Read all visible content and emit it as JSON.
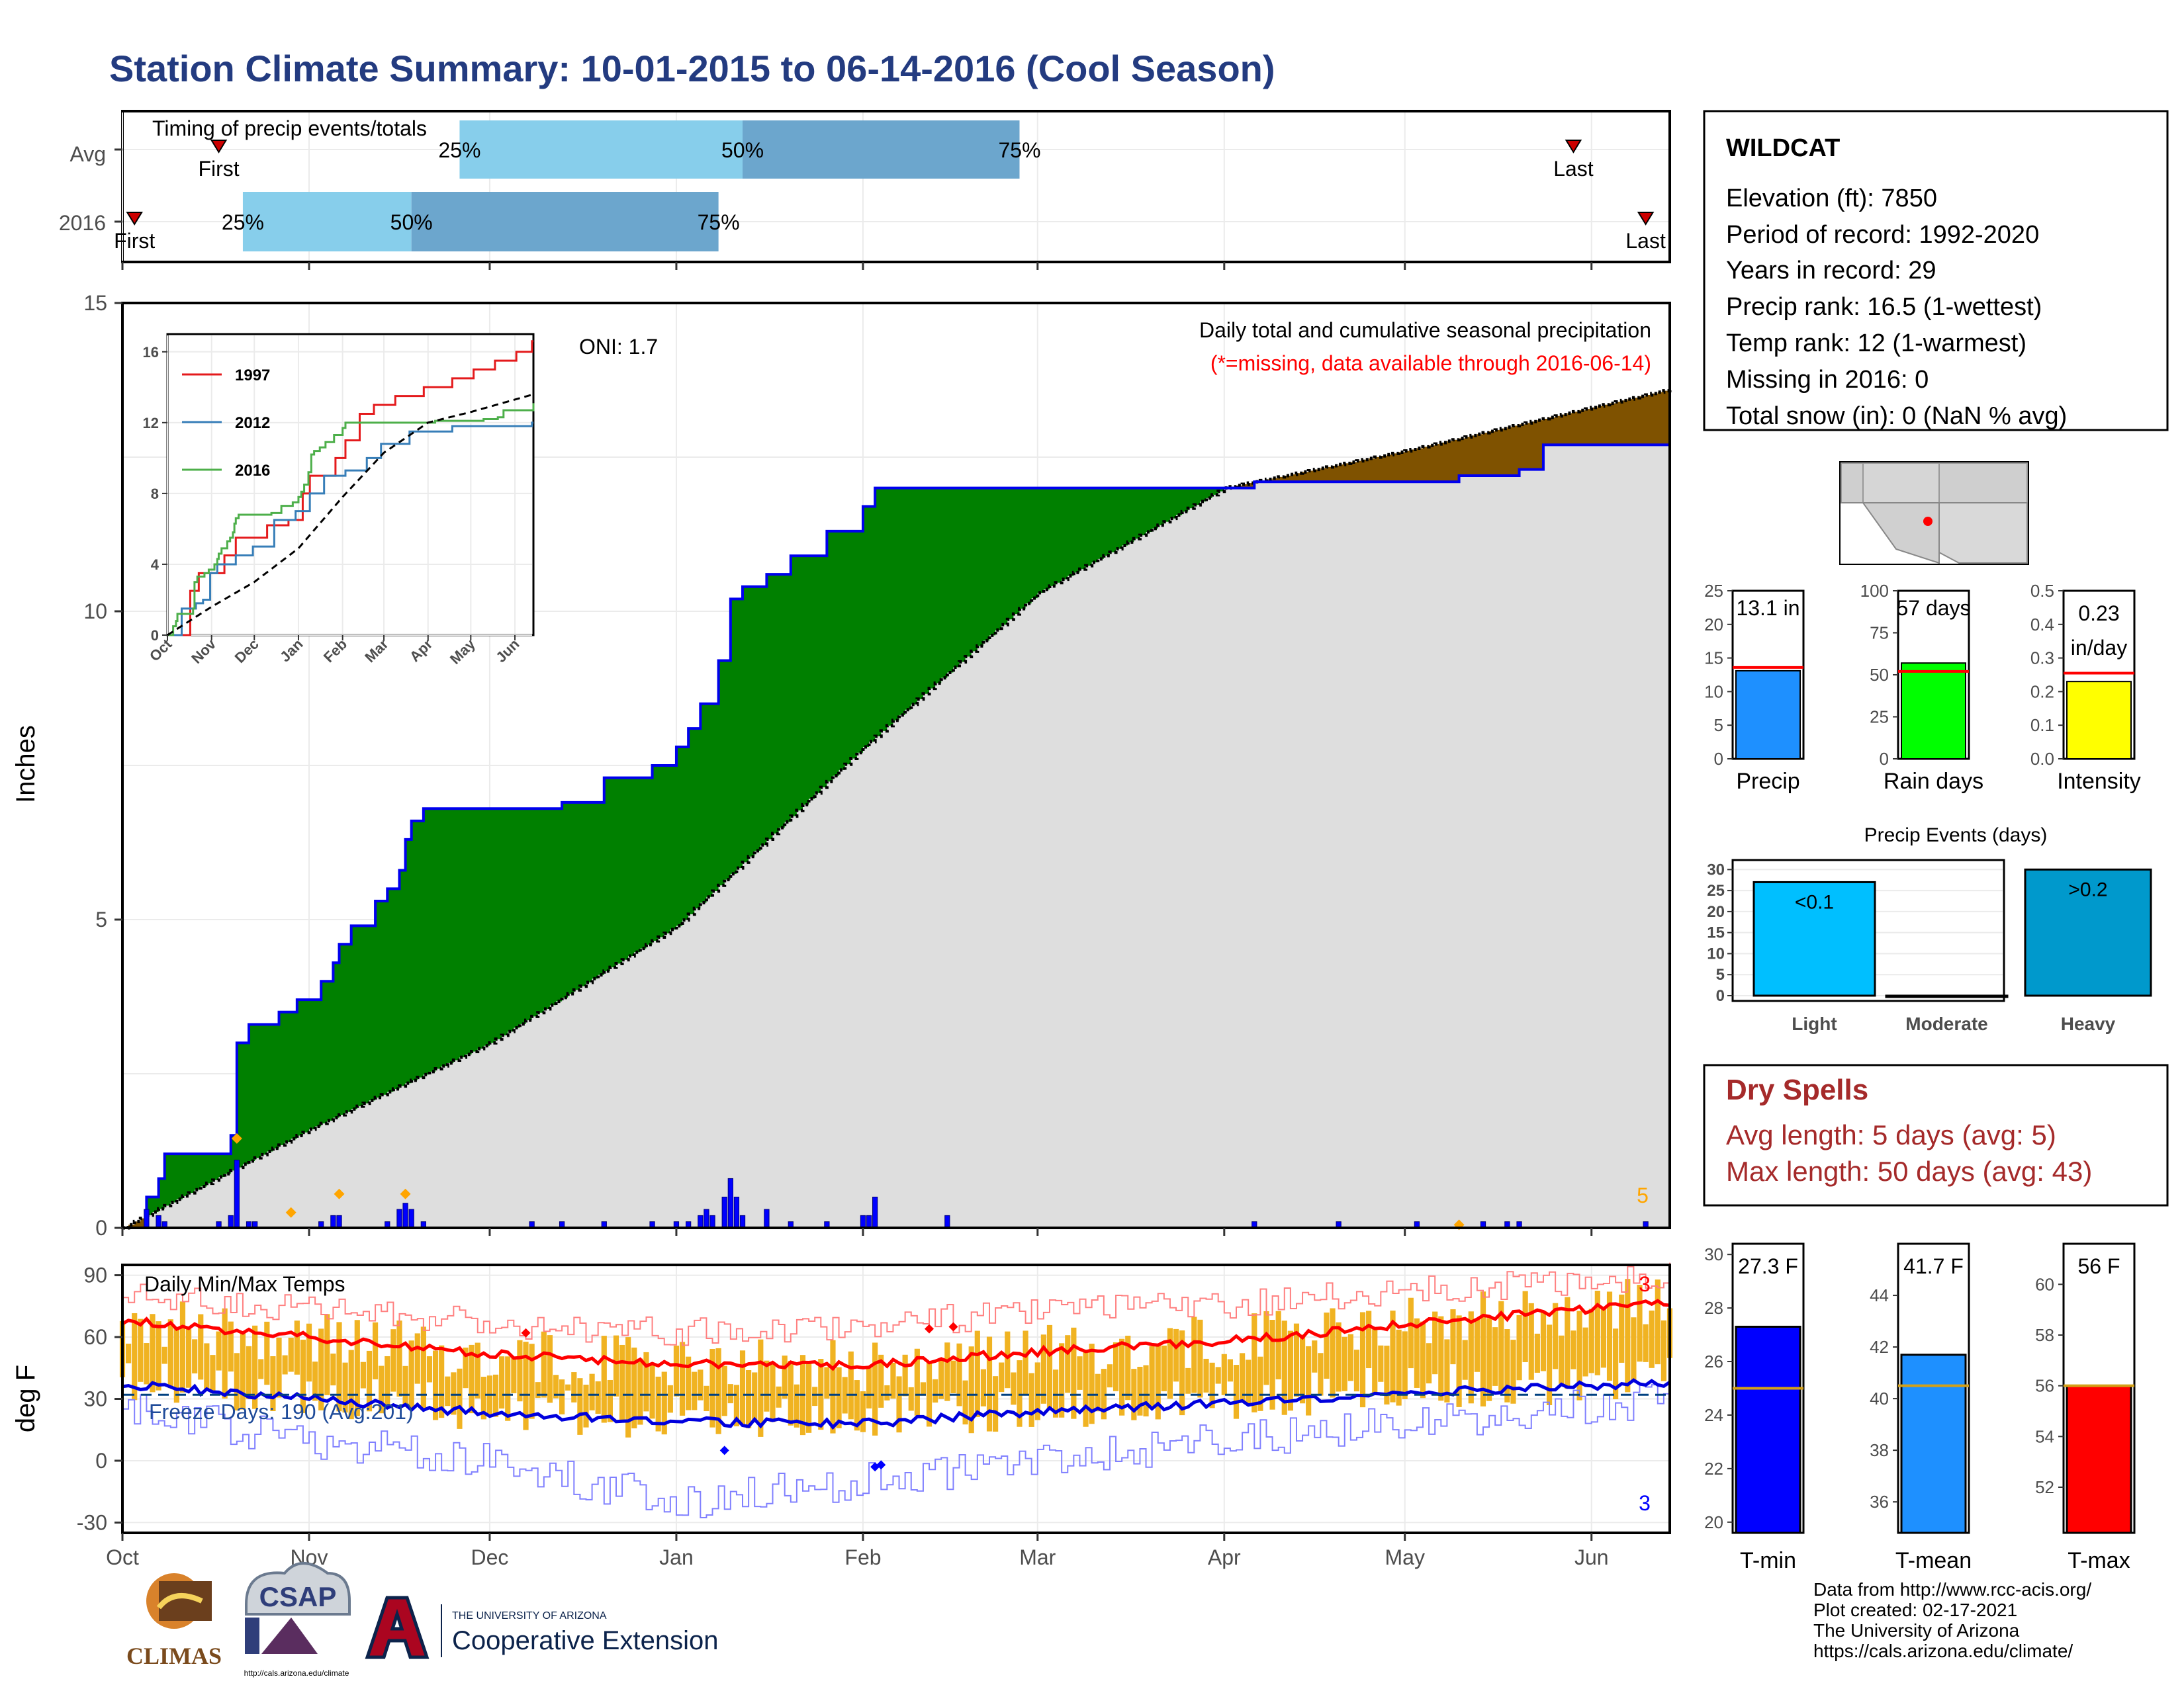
{
  "title": "Station Climate Summary: 10-01-2015 to 06-14-2016 (Cool Season)",
  "timing": {
    "title": "Timing of precip events/totals",
    "rows": [
      {
        "label": "Avg",
        "first": "First",
        "last": "Last",
        "first_date": "2015-10-17",
        "last_date": "2016-05-29",
        "q25": "2015-11-26",
        "q50": "2016-01-12",
        "q75": "2016-02-27"
      },
      {
        "label": "2016",
        "first": "First",
        "last": "Last",
        "first_date": "2015-10-03",
        "last_date": "2016-06-10",
        "q25": "2015-10-21",
        "q50": "2015-11-18",
        "q75": "2016-01-08"
      }
    ],
    "pct_labels": [
      "25%",
      "50%",
      "75%"
    ]
  },
  "main": {
    "ylabel": "Inches",
    "oni": "ONI: 1.7",
    "subtitle": "Daily total and cumulative seasonal precipitation",
    "missing_note": "(*=missing, data available through 2016-06-14)",
    "count_label": "5"
  },
  "xaxis": {
    "months": [
      "Oct",
      "Nov",
      "Dec",
      "Jan",
      "Feb",
      "Mar",
      "Apr",
      "May",
      "Jun"
    ]
  },
  "inset": {
    "months": [
      "Oct",
      "Nov",
      "Dec",
      "Jan",
      "Feb",
      "Mar",
      "Apr",
      "May",
      "Jun"
    ],
    "yticks": [
      "0",
      "4",
      "8",
      "12",
      "16"
    ],
    "legend": [
      "1997",
      "2012",
      "2016"
    ]
  },
  "info": {
    "station": "WILDCAT",
    "lines": [
      "Elevation (ft): 7850",
      "Period of record: 1992-2020",
      "Years in record: 29",
      "Precip rank: 16.5 (1-wettest)",
      "Temp rank: 12 (1-warmest)",
      "Missing in 2016: 0",
      "Total snow (in): 0 (NaN % avg)"
    ]
  },
  "small_bars": [
    {
      "name": "Precip",
      "label1": "13.1 in",
      "label2": "",
      "value": 13.1,
      "avg": 13.6,
      "color": "#1E90FF",
      "ymax": 25,
      "ticks": [
        "0",
        "5",
        "10",
        "15",
        "20",
        "25"
      ]
    },
    {
      "name": "Rain days",
      "label1": "57 days",
      "label2": "",
      "value": 57,
      "avg": 52,
      "color": "#00FF00",
      "ymax": 100,
      "ticks": [
        "0",
        "25",
        "50",
        "75",
        "100"
      ]
    },
    {
      "name": "Intensity",
      "label1": "0.23",
      "label2": "in/day",
      "value": 0.23,
      "avg": 0.255,
      "color": "#FFFF00",
      "ymax": 0.5,
      "ticks": [
        "0.0",
        "0.1",
        "0.2",
        "0.3",
        "0.4",
        "0.5"
      ]
    }
  ],
  "precip_events": {
    "title": "Precip Events (days)",
    "categories": [
      "Light",
      "Moderate",
      "Heavy"
    ],
    "labels": [
      "<0.1",
      "",
      ">0.2"
    ],
    "values": [
      27,
      0,
      30
    ],
    "colors": [
      "#00BFFF",
      "#1E90FF",
      "#0099CC"
    ],
    "yticks": [
      "0",
      "5",
      "10",
      "15",
      "20",
      "25",
      "30"
    ]
  },
  "dry_spells": {
    "title": "Dry Spells",
    "avg_line": "Avg length: 5 days (avg: 5)",
    "max_line": "Max length: 50 days (avg: 43)"
  },
  "temps": {
    "ylabel": "deg F",
    "title": "Daily Min/Max Temps",
    "freeze": "Freeze Days: 190 (Avg:201)",
    "max_count": "3",
    "min_count": "3",
    "yticks": [
      "-30",
      "0",
      "30",
      "60",
      "90"
    ]
  },
  "temp_bars": [
    {
      "name": "T-min",
      "label": "27.3 F",
      "value": 27.3,
      "avg": 25.0,
      "color": "#0000FF",
      "ymin": 19.6,
      "ymax": 30.4,
      "ticks": [
        "20",
        "22",
        "24",
        "26",
        "28",
        "30"
      ]
    },
    {
      "name": "T-mean",
      "label": "41.7 F",
      "value": 41.7,
      "avg": 40.5,
      "color": "#1E90FF",
      "ymin": 34.8,
      "ymax": 46.0,
      "ticks": [
        "36",
        "38",
        "40",
        "42",
        "44"
      ]
    },
    {
      "name": "T-max",
      "label": "56 F",
      "value": 56.0,
      "avg": 56.0,
      "color": "#FF0000",
      "ymin": 50.2,
      "ymax": 61.6,
      "ticks": [
        "52",
        "54",
        "56",
        "58",
        "60"
      ]
    }
  ],
  "credits": [
    "Data from http://www.rcc-acis.org/",
    "Plot created: 02-17-2021",
    "The University of Arizona",
    "https://cals.arizona.edu/climate/"
  ],
  "logos": {
    "climas": "CLIMAS",
    "csap": "CSAP",
    "csap_url": "http://cals.arizona.edu/climate",
    "ua_small": "THE UNIVERSITY OF ARIZONA",
    "coop": "Cooperative Extension"
  },
  "chart_data": [
    {
      "type": "area",
      "title": "Daily total and cumulative seasonal precipitation",
      "ylabel": "Inches",
      "ylim": [
        0,
        15
      ],
      "x_range": [
        "2015-10-01",
        "2016-06-14"
      ],
      "series": [
        {
          "name": "Cumulative precip 2016",
          "x": [
            "2015-10-01",
            "2015-10-05",
            "2015-10-07",
            "2015-10-08",
            "2015-10-12",
            "2015-10-19",
            "2015-10-20",
            "2015-10-22",
            "2015-10-27",
            "2015-10-30",
            "2015-11-03",
            "2015-11-05",
            "2015-11-06",
            "2015-11-08",
            "2015-11-12",
            "2015-11-14",
            "2015-11-16",
            "2015-11-17",
            "2015-11-18",
            "2015-11-20",
            "2015-12-08",
            "2015-12-13",
            "2015-12-20",
            "2015-12-28",
            "2016-01-01",
            "2016-01-03",
            "2016-01-05",
            "2016-01-08",
            "2016-01-10",
            "2016-01-12",
            "2016-01-16",
            "2016-01-20",
            "2016-01-26",
            "2016-02-01",
            "2016-02-03",
            "2016-02-15",
            "2016-04-01",
            "2016-04-06",
            "2016-05-03",
            "2016-05-10",
            "2016-05-20",
            "2016-05-24",
            "2016-06-14"
          ],
          "y": [
            0,
            0.5,
            0.8,
            1.2,
            1.2,
            1.5,
            3.0,
            3.3,
            3.5,
            3.7,
            4.0,
            4.3,
            4.6,
            4.9,
            5.3,
            5.5,
            5.8,
            6.3,
            6.6,
            6.8,
            6.8,
            6.9,
            7.3,
            7.5,
            7.8,
            8.1,
            8.5,
            9.2,
            10.2,
            10.4,
            10.6,
            10.9,
            11.3,
            11.7,
            12.0,
            12.0,
            12.0,
            12.1,
            12.1,
            12.2,
            12.3,
            12.7,
            13.1
          ]
        },
        {
          "name": "Average cumulative",
          "x": [
            "2015-10-01",
            "2015-11-01",
            "2015-12-01",
            "2016-01-01",
            "2016-02-01",
            "2016-03-01",
            "2016-04-01",
            "2016-05-01",
            "2016-06-14"
          ],
          "y": [
            0,
            1.6,
            3.0,
            4.9,
            7.8,
            10.3,
            12.0,
            12.6,
            13.6
          ]
        }
      ],
      "daily": [
        {
          "x": "2015-10-05",
          "y": 0.3
        },
        {
          "x": "2015-10-07",
          "y": 0.2
        },
        {
          "x": "2015-10-08",
          "y": 0.1
        },
        {
          "x": "2015-10-17",
          "y": 0.1
        },
        {
          "x": "2015-10-19",
          "y": 0.2
        },
        {
          "x": "2015-10-20",
          "y": 1.1
        },
        {
          "x": "2015-10-22",
          "y": 0.1
        },
        {
          "x": "2015-10-23",
          "y": 0.1
        },
        {
          "x": "2015-11-03",
          "y": 0.1
        },
        {
          "x": "2015-11-05",
          "y": 0.2
        },
        {
          "x": "2015-11-06",
          "y": 0.2
        },
        {
          "x": "2015-11-14",
          "y": 0.1
        },
        {
          "x": "2015-11-16",
          "y": 0.3
        },
        {
          "x": "2015-11-17",
          "y": 0.4
        },
        {
          "x": "2015-11-18",
          "y": 0.3
        },
        {
          "x": "2015-11-20",
          "y": 0.1
        },
        {
          "x": "2015-12-08",
          "y": 0.1
        },
        {
          "x": "2015-12-13",
          "y": 0.1
        },
        {
          "x": "2015-12-20",
          "y": 0.1
        },
        {
          "x": "2015-12-28",
          "y": 0.1
        },
        {
          "x": "2016-01-01",
          "y": 0.1
        },
        {
          "x": "2016-01-03",
          "y": 0.1
        },
        {
          "x": "2016-01-05",
          "y": 0.2
        },
        {
          "x": "2016-01-06",
          "y": 0.3
        },
        {
          "x": "2016-01-07",
          "y": 0.2
        },
        {
          "x": "2016-01-09",
          "y": 0.5
        },
        {
          "x": "2016-01-10",
          "y": 0.8
        },
        {
          "x": "2016-01-11",
          "y": 0.5
        },
        {
          "x": "2016-01-12",
          "y": 0.2
        },
        {
          "x": "2016-01-16",
          "y": 0.3
        },
        {
          "x": "2016-01-20",
          "y": 0.1
        },
        {
          "x": "2016-01-26",
          "y": 0.1
        },
        {
          "x": "2016-02-01",
          "y": 0.2
        },
        {
          "x": "2016-02-02",
          "y": 0.2
        },
        {
          "x": "2016-02-03",
          "y": 0.5
        },
        {
          "x": "2016-02-15",
          "y": 0.2
        },
        {
          "x": "2016-04-06",
          "y": 0.1
        },
        {
          "x": "2016-04-20",
          "y": 0.1
        },
        {
          "x": "2016-05-03",
          "y": 0.1
        },
        {
          "x": "2016-05-14",
          "y": 0.1
        },
        {
          "x": "2016-05-18",
          "y": 0.1
        },
        {
          "x": "2016-05-20",
          "y": 0.1
        },
        {
          "x": "2016-06-10",
          "y": 0.1
        }
      ]
    },
    {
      "type": "line",
      "title": "Daily Min/Max Temps",
      "ylabel": "deg F",
      "ylim": [
        -35,
        95
      ],
      "freeze_line": 32,
      "series": [
        {
          "name": "Avg max",
          "x": [
            "2015-10-01",
            "2015-11-01",
            "2015-12-01",
            "2016-01-01",
            "2016-02-01",
            "2016-03-01",
            "2016-04-01",
            "2016-05-01",
            "2016-06-14"
          ],
          "y": [
            68,
            60,
            52,
            47,
            46,
            53,
            58,
            66,
            77
          ]
        },
        {
          "name": "Avg min",
          "x": [
            "2015-10-01",
            "2015-11-01",
            "2015-12-01",
            "2016-01-01",
            "2016-02-01",
            "2016-03-01",
            "2016-04-01",
            "2016-05-01",
            "2016-06-14"
          ],
          "y": [
            37,
            30,
            23,
            19,
            18,
            24,
            28,
            33,
            38
          ]
        },
        {
          "name": "Record max",
          "x": [
            "2015-10-01",
            "2015-11-01",
            "2015-12-01",
            "2016-01-01",
            "2016-02-01",
            "2016-03-01",
            "2016-04-01",
            "2016-05-01",
            "2016-06-14"
          ],
          "y": [
            80,
            74,
            67,
            62,
            66,
            72,
            76,
            82,
            90
          ]
        },
        {
          "name": "Record min",
          "x": [
            "2015-10-01",
            "2015-11-01",
            "2015-12-01",
            "2016-01-01",
            "2016-02-01",
            "2016-03-01",
            "2016-04-01",
            "2016-05-01",
            "2016-06-14"
          ],
          "y": [
            25,
            10,
            0,
            -20,
            -10,
            0,
            10,
            18,
            30
          ]
        }
      ]
    }
  ]
}
